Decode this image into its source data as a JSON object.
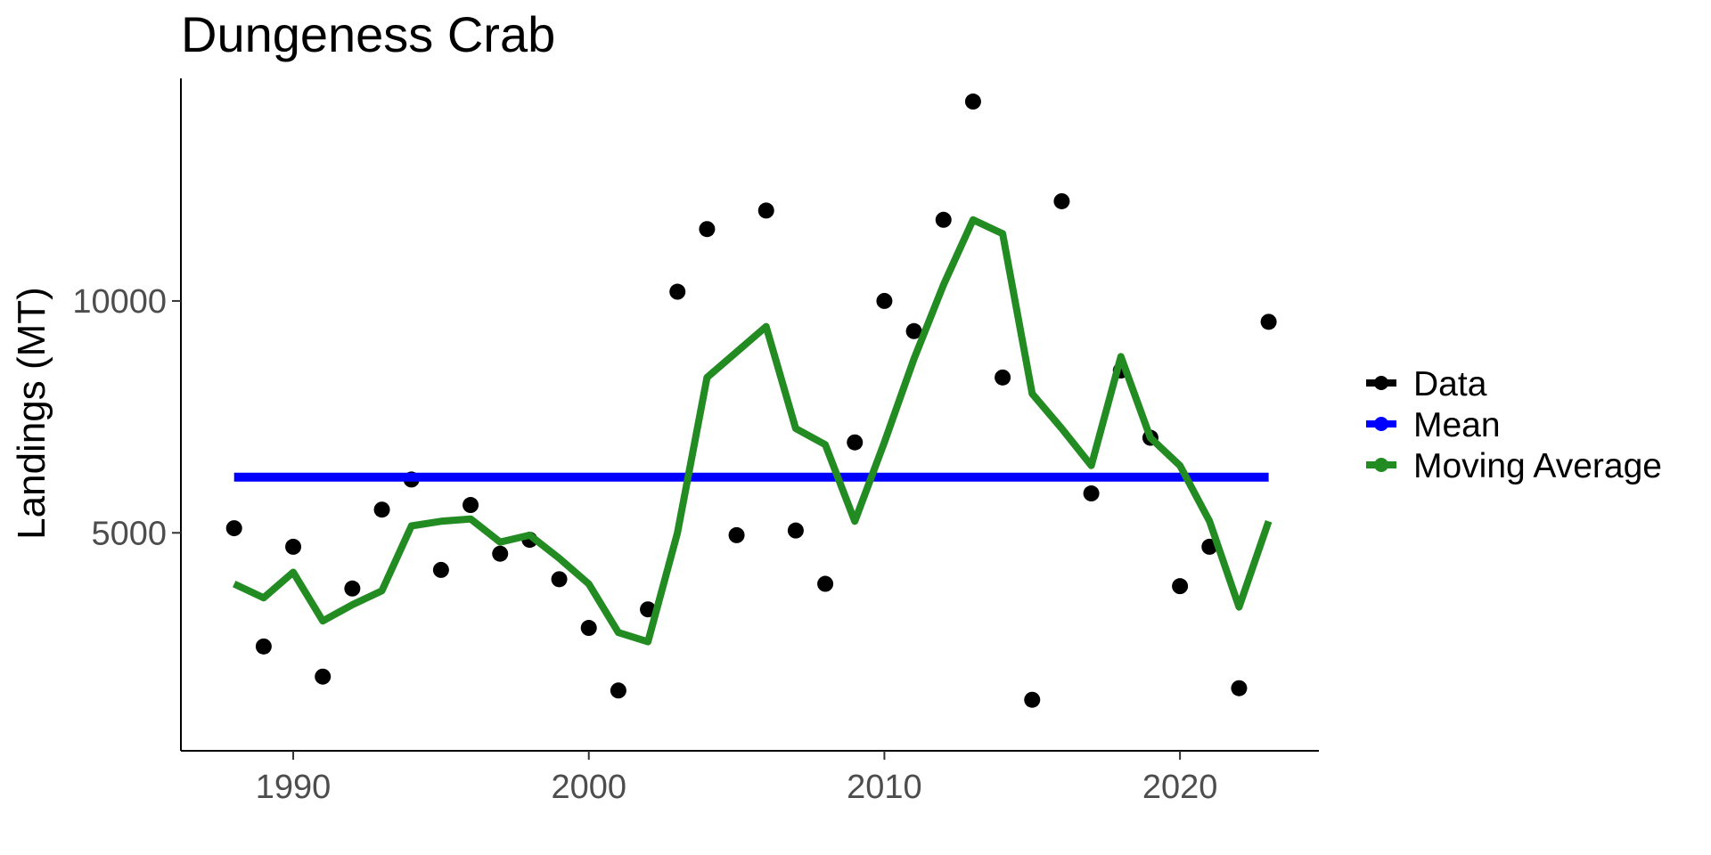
{
  "chart_data": {
    "type": "line",
    "title": "Dungeness Crab",
    "xlabel": "",
    "ylabel": "Landings (MT)",
    "xlim": [
      1986.2,
      2024.7
    ],
    "ylim": [
      300,
      14800
    ],
    "x_ticks": [
      1990,
      2000,
      2010,
      2020
    ],
    "x_tick_labels": [
      "1990",
      "2000",
      "2010",
      "2020"
    ],
    "y_ticks": [
      5000,
      10000
    ],
    "y_tick_labels": [
      "5000",
      "10000"
    ],
    "grid": false,
    "legend_position": "right",
    "legend": [
      "Data",
      "Mean",
      "Moving Average"
    ],
    "colors": {
      "Data": "#000000",
      "Mean": "#0000ff",
      "Moving Average": "#228b22"
    },
    "series": [
      {
        "name": "Data",
        "kind": "points",
        "x": [
          1988,
          1989,
          1990,
          1991,
          1992,
          1993,
          1994,
          1995,
          1996,
          1997,
          1998,
          1999,
          2000,
          2001,
          2002,
          2003,
          2004,
          2005,
          2006,
          2007,
          2008,
          2009,
          2010,
          2011,
          2012,
          2013,
          2014,
          2015,
          2016,
          2017,
          2018,
          2019,
          2020,
          2021,
          2022,
          2023
        ],
        "y": [
          5100,
          2550,
          4700,
          1900,
          3800,
          5500,
          6150,
          4200,
          5600,
          4550,
          4850,
          4000,
          2950,
          1600,
          3350,
          10200,
          11550,
          4950,
          11950,
          5050,
          3900,
          6950,
          10000,
          9350,
          11750,
          14300,
          8350,
          1400,
          12150,
          5850,
          8500,
          7050,
          3850,
          4700,
          1650,
          9550
        ]
      },
      {
        "name": "Mean",
        "kind": "line",
        "x": [
          1988,
          2023
        ],
        "y": [
          6200,
          6200
        ]
      },
      {
        "name": "Moving Average",
        "kind": "line",
        "x": [
          1988,
          1989,
          1990,
          1991,
          1992,
          1993,
          1994,
          1995,
          1996,
          1997,
          1998,
          1999,
          2000,
          2001,
          2002,
          2003,
          2004,
          2005,
          2006,
          2007,
          2008,
          2009,
          2010,
          2011,
          2012,
          2013,
          2014,
          2015,
          2016,
          2017,
          2018,
          2019,
          2020,
          2021,
          2022,
          2023
        ],
        "y": [
          3900,
          3600,
          4150,
          3100,
          3450,
          3750,
          5150,
          5250,
          5300,
          4800,
          4950,
          4450,
          3900,
          2850,
          2650,
          5000,
          8350,
          8900,
          9450,
          7250,
          6900,
          5250,
          6950,
          8750,
          10350,
          11750,
          11450,
          8000,
          7250,
          6450,
          8800,
          7050,
          6450,
          5250,
          3400,
          5250
        ]
      }
    ]
  }
}
